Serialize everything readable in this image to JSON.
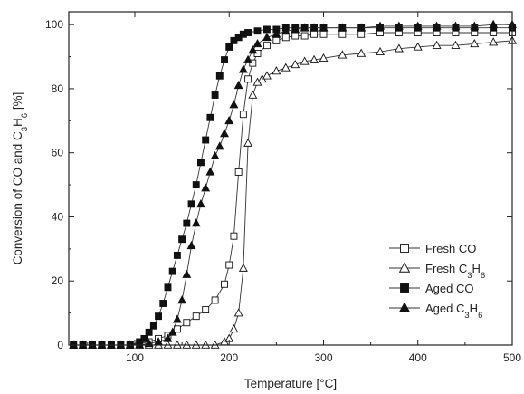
{
  "chart_data": {
    "type": "line",
    "title": "",
    "xlabel": "Temperature [°C]",
    "ylabel": "Conversion of CO and C3H6 [%]",
    "ylabel_parts": [
      "Conversion of CO and C",
      "3",
      "H",
      "6",
      " [%]"
    ],
    "xlim": [
      30,
      500
    ],
    "ylim": [
      0,
      104
    ],
    "xticks": [
      100,
      200,
      300,
      400,
      500
    ],
    "yticks": [
      0,
      20,
      40,
      60,
      80,
      100
    ],
    "xtick_labels": [
      "100",
      "200",
      "300",
      "400",
      "500"
    ],
    "ytick_labels": [
      "0",
      "20",
      "40",
      "60",
      "80",
      "100"
    ],
    "grid": false,
    "legend_position": "bottom-right",
    "series": [
      {
        "name": "Fresh CO",
        "label_parts": [
          "Fresh CO"
        ],
        "marker": "square-open",
        "x": [
          35,
          45,
          55,
          65,
          75,
          85,
          95,
          105,
          115,
          125,
          135,
          145,
          155,
          165,
          175,
          185,
          195,
          200,
          205,
          210,
          215,
          220,
          225,
          230,
          240,
          250,
          260,
          270,
          280,
          290,
          300,
          320,
          340,
          360,
          380,
          400,
          420,
          440,
          460,
          480,
          500
        ],
        "y": [
          0,
          0,
          0,
          0,
          0,
          0,
          0,
          0.5,
          1,
          2,
          3,
          5,
          7,
          9,
          11,
          14,
          19,
          25,
          34,
          54,
          72,
          83,
          88,
          91,
          93.5,
          95,
          96,
          96.5,
          96.5,
          97,
          97,
          97,
          97,
          97.5,
          97.5,
          97.5,
          97.5,
          97.5,
          97.5,
          97.5,
          97.5
        ]
      },
      {
        "name": "Fresh C3H6",
        "label_parts": [
          "Fresh C",
          "3",
          "H",
          "6"
        ],
        "marker": "triangle-open",
        "x": [
          35,
          45,
          55,
          65,
          75,
          85,
          95,
          105,
          115,
          125,
          135,
          145,
          155,
          165,
          175,
          185,
          195,
          200,
          205,
          210,
          215,
          220,
          225,
          230,
          235,
          240,
          250,
          260,
          270,
          280,
          290,
          300,
          320,
          340,
          360,
          380,
          400,
          420,
          440,
          460,
          480,
          500
        ],
        "y": [
          0,
          0,
          0,
          0,
          0,
          0,
          0,
          0,
          0,
          0,
          0,
          0,
          0,
          0,
          0,
          0,
          1,
          2,
          5,
          10,
          24,
          63,
          78,
          82,
          83,
          84,
          85.5,
          86.5,
          87.5,
          88.5,
          89,
          89.5,
          90.5,
          91,
          91.5,
          92.5,
          93,
          93.5,
          93.5,
          94,
          94.5,
          95
        ]
      },
      {
        "name": "Aged CO",
        "label_parts": [
          "Aged CO"
        ],
        "marker": "square-filled",
        "x": [
          35,
          45,
          55,
          65,
          75,
          85,
          95,
          105,
          110,
          115,
          120,
          125,
          130,
          135,
          140,
          145,
          150,
          155,
          160,
          165,
          170,
          175,
          180,
          185,
          190,
          195,
          200,
          205,
          210,
          215,
          220,
          230,
          240,
          250,
          260,
          270,
          280,
          290,
          300,
          320,
          340,
          360,
          380,
          400,
          420,
          440,
          460,
          480,
          500
        ],
        "y": [
          0,
          0,
          0,
          0,
          0,
          0,
          0,
          1,
          2,
          4,
          6,
          9,
          13,
          18,
          23,
          28,
          33,
          38,
          44,
          50,
          57,
          64,
          71,
          78,
          84,
          89,
          93,
          95,
          96,
          97,
          97.5,
          98,
          98.5,
          98.5,
          99,
          99,
          99,
          99,
          99,
          99,
          99,
          99,
          99,
          99,
          99,
          99,
          99,
          99,
          99
        ]
      },
      {
        "name": "Aged C3H6",
        "label_parts": [
          "Aged C",
          "3",
          "H",
          "6"
        ],
        "marker": "triangle-filled",
        "x": [
          35,
          45,
          55,
          65,
          75,
          85,
          95,
          105,
          115,
          125,
          135,
          140,
          145,
          150,
          155,
          160,
          165,
          170,
          175,
          180,
          185,
          190,
          195,
          200,
          205,
          210,
          215,
          220,
          225,
          230,
          240,
          250,
          260,
          270,
          280,
          290,
          300,
          320,
          340,
          360,
          380,
          400,
          420,
          440,
          460,
          480,
          500
        ],
        "y": [
          0,
          0,
          0,
          0,
          0,
          0,
          0,
          0,
          0.5,
          1,
          2,
          4,
          8,
          14,
          22,
          31,
          38,
          44,
          49,
          54,
          59,
          62,
          66,
          70,
          75,
          81,
          86,
          89,
          92,
          94,
          96,
          97,
          98,
          98.5,
          99,
          99,
          99,
          99,
          99,
          99.5,
          99.5,
          99.5,
          99.5,
          99.5,
          99.5,
          100,
          100
        ]
      }
    ]
  }
}
